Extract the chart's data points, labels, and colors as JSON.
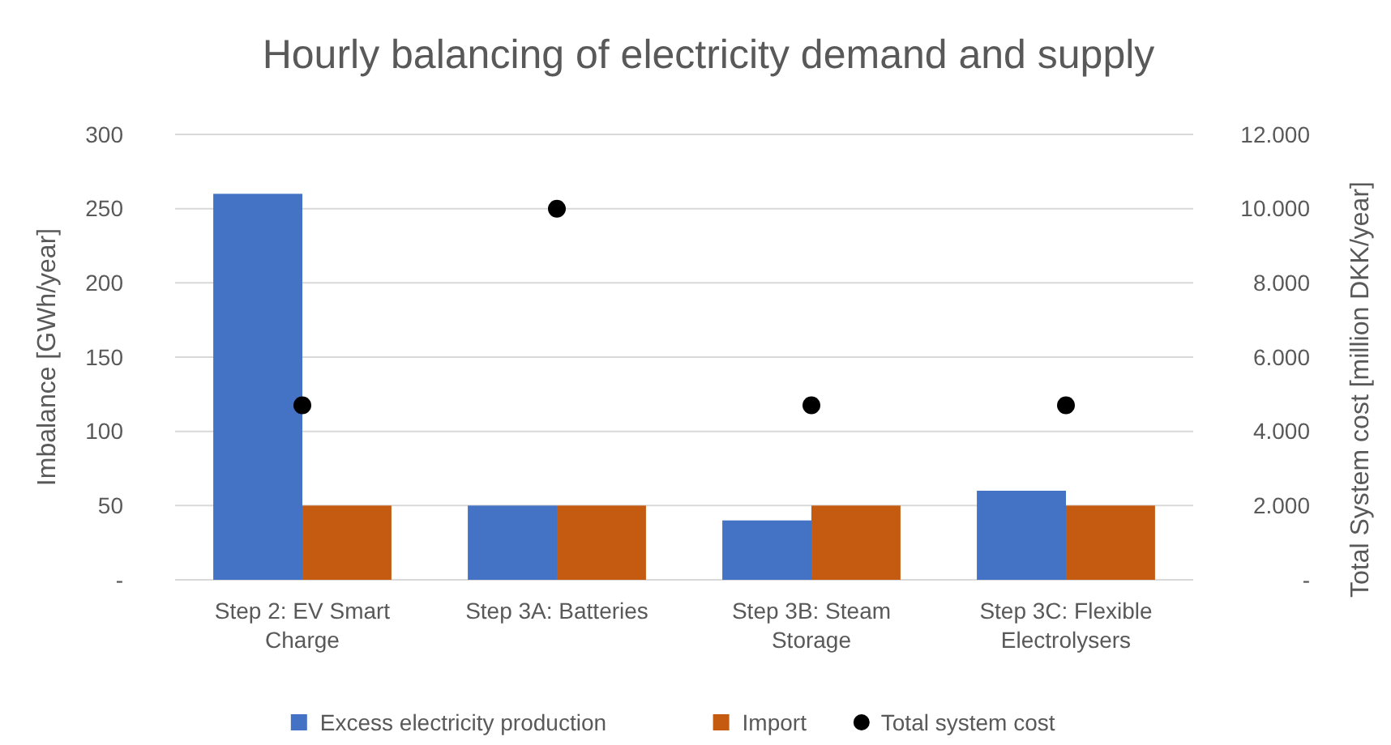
{
  "chart_data": {
    "type": "bar",
    "title": "Hourly balancing of electricity demand and supply",
    "ylabel": "Imbalance [GWh/year]",
    "y2label": "Total System cost [million DKK/year]",
    "categories": [
      "Step 2: EV Smart Charge",
      "Step 3A: Batteries",
      "Step 3B: Steam Storage",
      "Step 3C: Flexible Electrolysers"
    ],
    "series": [
      {
        "name": "Excess electricity production",
        "color": "#4472c4",
        "values": [
          260,
          50,
          40,
          60
        ]
      },
      {
        "name": "Import",
        "color": "#c55a11",
        "values": [
          50,
          50,
          50,
          50
        ]
      },
      {
        "name": "Total system cost",
        "type": "scatter",
        "axis": "y2",
        "color": "#000000",
        "values": [
          4700,
          10000,
          4700,
          4700
        ]
      }
    ],
    "ylim": [
      0,
      300
    ],
    "yticks": [
      {
        "value": 0,
        "label": "-"
      },
      50,
      100,
      150,
      200,
      250,
      300
    ],
    "y2lim": [
      0,
      12000
    ],
    "y2ticks": [
      {
        "value": 0,
        "label": "-"
      },
      {
        "value": 2000,
        "label": "2.000"
      },
      {
        "value": 4000,
        "label": "4.000"
      },
      {
        "value": 6000,
        "label": "6.000"
      },
      {
        "value": 8000,
        "label": "8.000"
      },
      {
        "value": 10000,
        "label": "10.000"
      },
      {
        "value": 12000,
        "label": "12.000"
      }
    ],
    "grid": "y",
    "legend": "bottom",
    "marker": "circle"
  }
}
